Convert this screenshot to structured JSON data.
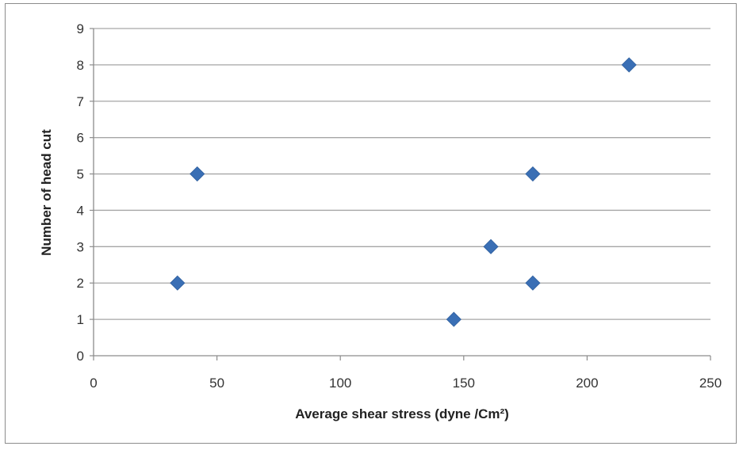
{
  "chart_data": {
    "type": "scatter",
    "title": "",
    "xlabel": "Average shear stress (dyne /Cm²)",
    "ylabel": "Number of head cut",
    "xlim": [
      0,
      250
    ],
    "ylim": [
      0,
      9
    ],
    "xticks": [
      0,
      50,
      100,
      150,
      200,
      250
    ],
    "yticks": [
      0,
      1,
      2,
      3,
      4,
      5,
      6,
      7,
      8,
      9
    ],
    "grid": true,
    "legend": "none",
    "marker": "diamond",
    "marker_color": "#3a6fb5",
    "points": [
      {
        "x": 34,
        "y": 2
      },
      {
        "x": 42,
        "y": 5
      },
      {
        "x": 146,
        "y": 1
      },
      {
        "x": 161,
        "y": 3
      },
      {
        "x": 178,
        "y": 5
      },
      {
        "x": 178,
        "y": 2
      },
      {
        "x": 217,
        "y": 8
      }
    ]
  }
}
